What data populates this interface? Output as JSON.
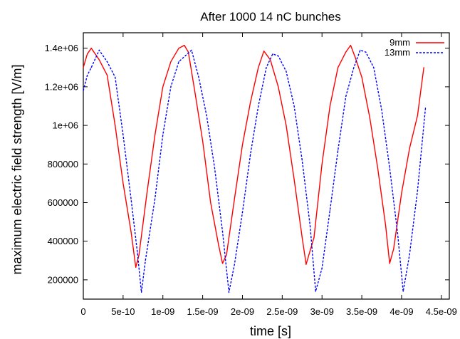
{
  "chart_data": {
    "type": "line",
    "title": "After 1000 14 nC bunches",
    "xlabel": "time [s]",
    "ylabel": "maximum electric field strength [V/m]",
    "xlim": [
      0,
      4.6e-09
    ],
    "ylim": [
      100000,
      1480000
    ],
    "x_ticks": [
      0,
      5e-10,
      1e-09,
      1.5e-09,
      2e-09,
      2.5e-09,
      3e-09,
      3.5e-09,
      4e-09,
      4.5e-09
    ],
    "x_tick_labels": [
      "0",
      "5e-10",
      "1e-09",
      "1.5e-09",
      "2e-09",
      "2.5e-09",
      "3e-09",
      "3.5e-09",
      "4e-09",
      "4.5e-09"
    ],
    "y_ticks": [
      200000,
      400000,
      600000,
      800000,
      1000000,
      1200000,
      1400000
    ],
    "y_tick_labels": [
      "200000",
      "400000",
      "600000",
      "800000",
      "1e+06",
      "1.2e+06",
      "1.4e+06"
    ],
    "grid": false,
    "legend_position": "top-right",
    "series": [
      {
        "name": "9mm",
        "color": "#ff0000",
        "dash": "solid",
        "x": [
          0,
          5e-11,
          1e-10,
          2e-10,
          3e-10,
          4e-10,
          5e-10,
          6e-10,
          6.6e-10,
          7e-10,
          8e-10,
          9e-10,
          1e-09,
          1.1e-09,
          1.2e-09,
          1.27e-09,
          1.32e-09,
          1.4e-09,
          1.5e-09,
          1.6e-09,
          1.7e-09,
          1.75e-09,
          1.8e-09,
          1.9e-09,
          2e-09,
          2.1e-09,
          2.2e-09,
          2.27e-09,
          2.35e-09,
          2.45e-09,
          2.55e-09,
          2.65e-09,
          2.75e-09,
          2.8e-09,
          2.9e-09,
          3e-09,
          3.1e-09,
          3.2e-09,
          3.3e-09,
          3.36e-09,
          3.42e-09,
          3.5e-09,
          3.6e-09,
          3.7e-09,
          3.8e-09,
          3.85e-09,
          3.9e-09,
          4e-09,
          4.1e-09,
          4.2e-09,
          4.28e-09
        ],
        "values": [
          1300000,
          1370000,
          1400000,
          1340000,
          1260000,
          1000000,
          700000,
          450000,
          265000,
          330000,
          650000,
          950000,
          1200000,
          1330000,
          1400000,
          1415000,
          1380000,
          1180000,
          920000,
          600000,
          380000,
          285000,
          330000,
          620000,
          900000,
          1120000,
          1300000,
          1385000,
          1340000,
          1200000,
          1000000,
          720000,
          420000,
          280000,
          420000,
          800000,
          1100000,
          1300000,
          1380000,
          1415000,
          1350000,
          1250000,
          1040000,
          780000,
          480000,
          285000,
          360000,
          650000,
          880000,
          1050000,
          1300000
        ]
      },
      {
        "name": "13mm",
        "color": "#0000ff",
        "dash": "dashed",
        "x": [
          0,
          5e-11,
          1e-10,
          2e-10,
          3e-10,
          4e-10,
          5e-10,
          6e-10,
          6.8e-10,
          7.3e-10,
          7.8e-10,
          9e-10,
          1e-09,
          1.1e-09,
          1.2e-09,
          1.28e-09,
          1.36e-09,
          1.45e-09,
          1.55e-09,
          1.65e-09,
          1.75e-09,
          1.83e-09,
          1.9e-09,
          2e-09,
          2.1e-09,
          2.2e-09,
          2.3e-09,
          2.38e-09,
          2.45e-09,
          2.55e-09,
          2.65e-09,
          2.75e-09,
          2.85e-09,
          2.92e-09,
          3e-09,
          3.1e-09,
          3.2e-09,
          3.3e-09,
          3.4e-09,
          3.48e-09,
          3.55e-09,
          3.65e-09,
          3.75e-09,
          3.85e-09,
          3.95e-09,
          4.02e-09,
          4.1e-09,
          4.2e-09,
          4.3e-09
        ],
        "values": [
          1180000,
          1260000,
          1300000,
          1390000,
          1330000,
          1250000,
          950000,
          620000,
          340000,
          135000,
          300000,
          620000,
          950000,
          1200000,
          1330000,
          1360000,
          1390000,
          1250000,
          1050000,
          780000,
          450000,
          135000,
          280000,
          550000,
          850000,
          1100000,
          1300000,
          1370000,
          1360000,
          1280000,
          1100000,
          820000,
          480000,
          140000,
          260000,
          560000,
          870000,
          1150000,
          1300000,
          1390000,
          1380000,
          1300000,
          1080000,
          780000,
          440000,
          140000,
          330000,
          660000,
          1090000
        ]
      }
    ]
  }
}
